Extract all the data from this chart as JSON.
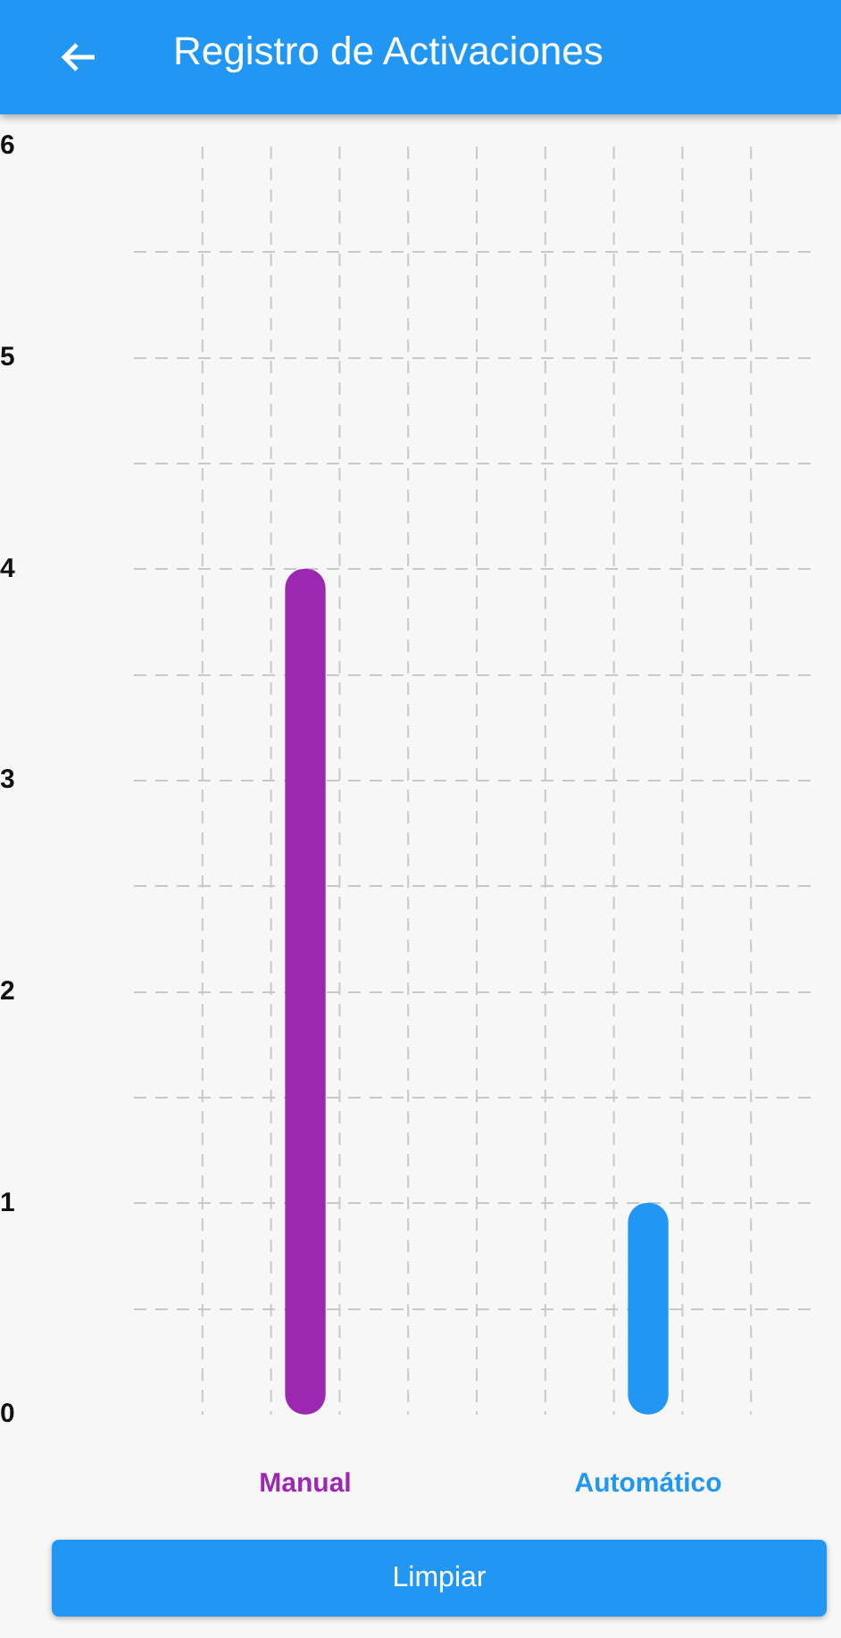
{
  "chart_data": {
    "type": "bar",
    "title": "Registro de Activaciones",
    "categories": [
      "Manual",
      "Automático"
    ],
    "values": [
      4,
      1
    ],
    "colors": [
      "#9c27b0",
      "#2196f3"
    ],
    "ylim": [
      0,
      6
    ],
    "yticks": [
      0,
      {
        "value": 0.5,
        "label": null
      },
      1,
      {
        "value": 1.5,
        "label": null
      },
      2,
      {
        "value": 2.5,
        "label": null
      },
      3,
      {
        "value": 3.5,
        "label": null
      },
      4,
      {
        "value": 4.5,
        "label": null
      },
      5,
      {
        "value": 5.5,
        "label": null
      },
      6
    ],
    "grid": true,
    "annotations": [
      "Limpiar"
    ]
  }
}
